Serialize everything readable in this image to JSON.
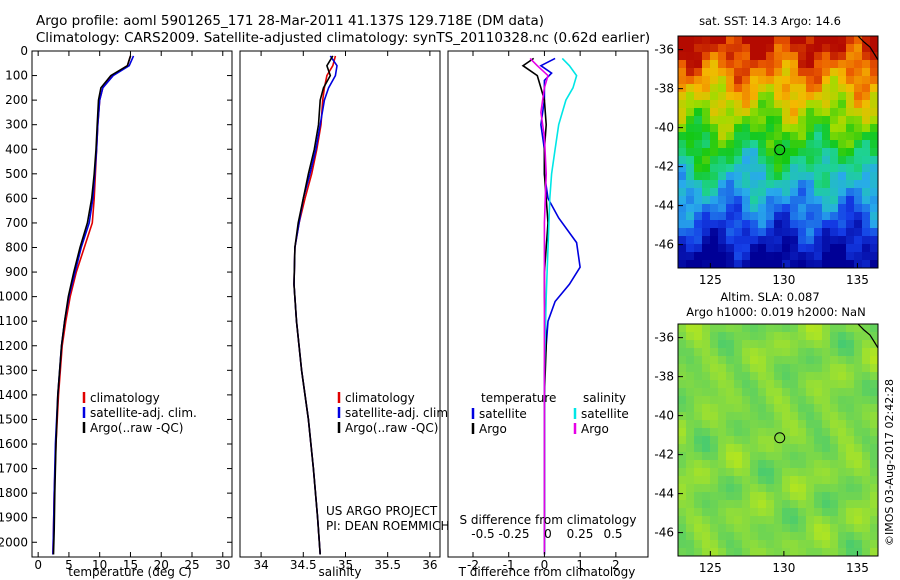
{
  "header": {
    "line1": "Argo profile: aoml 5901265_171 28-Mar-2011 41.137S 129.718E (DM data)",
    "line2": "Climatology: CARS2009. Satellite-adjusted climatology: synTS_20110328.nc (0.62d earlier)"
  },
  "colors": {
    "climatology": "#e00000",
    "satellite": "#0000e0",
    "argo": "#000000",
    "sat_salinity": "#00e6e6",
    "argo_salinity": "#e600e6"
  },
  "chart_data": [
    {
      "type": "line",
      "xlabel": "temperature (deg C)",
      "x_ticks": [
        0,
        5,
        10,
        15,
        20,
        25,
        30
      ],
      "xlim": [
        -1,
        31.5
      ],
      "ylim": [
        0,
        2060
      ],
      "y_ticks": [
        0,
        100,
        200,
        300,
        400,
        500,
        600,
        700,
        800,
        900,
        1000,
        1100,
        1200,
        1300,
        1400,
        1500,
        1600,
        1700,
        1800,
        1900,
        2000
      ],
      "legend": [
        "climatology",
        "satellite-adj. clim.",
        "Argo(..raw -QC)"
      ],
      "series": [
        {
          "name": "climatology",
          "color": "#e00000",
          "x": [
            15.0,
            14.5,
            12.0,
            10.5,
            10.0,
            9.7,
            9.5,
            9.3,
            9.1,
            8.8,
            7.5,
            6.2,
            5.2,
            4.5,
            3.9,
            3.3,
            2.9,
            2.6,
            2.5,
            2.4
          ],
          "y": [
            20,
            60,
            100,
            150,
            200,
            300,
            400,
            500,
            600,
            700,
            800,
            900,
            1000,
            1100,
            1200,
            1400,
            1600,
            1800,
            1950,
            2050
          ]
        },
        {
          "name": "satellite-adj. clim.",
          "color": "#0000e0",
          "x": [
            15.5,
            14.8,
            12.2,
            10.5,
            10.0,
            9.7,
            9.5,
            9.2,
            8.9,
            8.3,
            7.0,
            6.0,
            5.0,
            4.3,
            3.8,
            3.2,
            2.8,
            2.6,
            2.5,
            2.4
          ],
          "y": [
            20,
            60,
            100,
            150,
            200,
            300,
            400,
            500,
            600,
            700,
            800,
            900,
            1000,
            1100,
            1200,
            1400,
            1600,
            1800,
            1950,
            2050
          ]
        },
        {
          "name": "Argo(..raw -QC)",
          "color": "#000000",
          "x": [
            15.0,
            14.5,
            11.8,
            10.2,
            9.8,
            9.6,
            9.4,
            9.1,
            8.7,
            8.0,
            6.8,
            5.8,
            4.9,
            4.3,
            3.8,
            3.2,
            2.9,
            2.7,
            2.6,
            2.5
          ],
          "y": [
            20,
            60,
            100,
            150,
            200,
            300,
            400,
            500,
            600,
            700,
            800,
            900,
            1000,
            1100,
            1200,
            1400,
            1600,
            1800,
            1950,
            2050
          ]
        }
      ]
    },
    {
      "type": "line",
      "xlabel": "salinity",
      "x_ticks": [
        34,
        34.5,
        35,
        35.5,
        36
      ],
      "xlim": [
        33.75,
        36.12
      ],
      "ylim": [
        0,
        2060
      ],
      "legend": [
        "climatology",
        "satellite-adj. clim.",
        "Argo(..raw -QC)"
      ],
      "annotation": [
        "US ARGO PROJECT",
        "PI: DEAN ROEMMICH"
      ],
      "series": [
        {
          "name": "climatology",
          "color": "#e00000",
          "x": [
            34.88,
            34.85,
            34.78,
            34.75,
            34.73,
            34.71,
            34.66,
            34.6,
            34.52,
            34.45,
            34.4,
            34.39,
            34.42,
            34.48,
            34.56,
            34.62,
            34.67,
            34.7
          ],
          "y": [
            20,
            60,
            100,
            150,
            200,
            300,
            400,
            500,
            600,
            700,
            800,
            950,
            1100,
            1300,
            1500,
            1700,
            1900,
            2050
          ]
        },
        {
          "name": "satellite-adj. clim.",
          "color": "#0000e0",
          "x": [
            34.82,
            34.9,
            34.88,
            34.8,
            34.75,
            34.7,
            34.65,
            34.58,
            34.5,
            34.45,
            34.4,
            34.39,
            34.42,
            34.48,
            34.56,
            34.62,
            34.67,
            34.7
          ],
          "y": [
            20,
            60,
            100,
            150,
            200,
            300,
            400,
            500,
            600,
            700,
            800,
            950,
            1100,
            1300,
            1500,
            1700,
            1900,
            2050
          ]
        },
        {
          "name": "Argo(..raw -QC)",
          "color": "#000000",
          "x": [
            34.85,
            34.78,
            34.82,
            34.74,
            34.7,
            34.68,
            34.63,
            34.56,
            34.5,
            34.44,
            34.4,
            34.39,
            34.42,
            34.48,
            34.56,
            34.62,
            34.67,
            34.7
          ],
          "y": [
            20,
            60,
            100,
            150,
            200,
            300,
            400,
            500,
            600,
            700,
            800,
            950,
            1100,
            1300,
            1500,
            1700,
            1900,
            2050
          ]
        }
      ]
    },
    {
      "type": "line",
      "xlabel": "T difference from climatology",
      "x_ticks": [
        -2,
        -1,
        0,
        1,
        2
      ],
      "xlim": [
        -2.7,
        2.9
      ],
      "top_label": "S difference from climatology",
      "top_ticks": [
        "-0.5",
        "-0.25",
        "0",
        "0.25",
        "0.5"
      ],
      "ylim": [
        0,
        2060
      ],
      "legend": [
        "temperature",
        "satellite",
        "Argo",
        "salinity",
        "satellite",
        "Argo"
      ],
      "series": [
        {
          "name": "satellite",
          "color": "#0000e0",
          "x": [
            0.3,
            -0.1,
            0.2,
            0.0,
            0.0,
            -0.1,
            0.0,
            0.0,
            0.1,
            0.4,
            0.9,
            1.0,
            0.7,
            0.3,
            0.1,
            0.0,
            0.0,
            0.0
          ],
          "y": [
            30,
            60,
            90,
            120,
            200,
            300,
            400,
            500,
            600,
            680,
            780,
            880,
            950,
            1020,
            1100,
            1300,
            1600,
            2050
          ]
        },
        {
          "name": "Argo",
          "color": "#000000",
          "x": [
            -0.3,
            -0.6,
            -0.2,
            -0.1,
            0.0,
            0.05,
            0.0,
            0.0,
            0.05,
            0.1,
            0.05,
            0.0,
            0.0,
            0.05,
            0.0,
            0.0,
            0.0
          ],
          "y": [
            30,
            60,
            100,
            150,
            200,
            300,
            400,
            500,
            600,
            700,
            800,
            900,
            1000,
            1200,
            1400,
            1700,
            2050
          ]
        },
        {
          "name": "satellite",
          "color": "#00e6e6",
          "x": [
            0.5,
            0.7,
            0.9,
            0.8,
            0.6,
            0.4,
            0.3,
            0.2,
            0.15,
            0.1,
            0.05,
            0.0,
            0.0,
            0.0
          ],
          "y": [
            30,
            60,
            100,
            150,
            200,
            300,
            400,
            500,
            600,
            800,
            1000,
            1300,
            1600,
            2050
          ]
        },
        {
          "name": "Argo",
          "color": "#e600e6",
          "x": [
            -0.4,
            -0.2,
            0.1,
            0.0,
            -0.1,
            0.0,
            0.05,
            0.0,
            0.0,
            0.0,
            0.0
          ],
          "y": [
            30,
            60,
            100,
            150,
            250,
            350,
            500,
            700,
            1000,
            1400,
            2050
          ]
        }
      ]
    },
    {
      "type": "heatmap",
      "title": "sat. SST: 14.3 Argo: 14.6",
      "x_ticks": [
        125,
        130,
        135
      ],
      "y_ticks": [
        -36,
        -38,
        -40,
        -42,
        -44,
        -46
      ],
      "xlim": [
        122.8,
        136.4
      ],
      "ylim": [
        -47.2,
        -35.3
      ],
      "marker": {
        "lon": 129.718,
        "lat": -41.137
      }
    },
    {
      "type": "heatmap",
      "title": "Altim. SLA: 0.087",
      "subtitle": "Argo h1000: 0.019 h2000: NaN",
      "x_ticks": [
        125,
        130,
        135
      ],
      "y_ticks": [
        -36,
        -38,
        -40,
        -42,
        -44,
        -46
      ],
      "xlim": [
        122.8,
        136.4
      ],
      "ylim": [
        -47.2,
        -35.3
      ],
      "marker": {
        "lon": 129.718,
        "lat": -41.137
      }
    }
  ],
  "credit": "©IMOS 03-Aug-2017 02:42:28"
}
